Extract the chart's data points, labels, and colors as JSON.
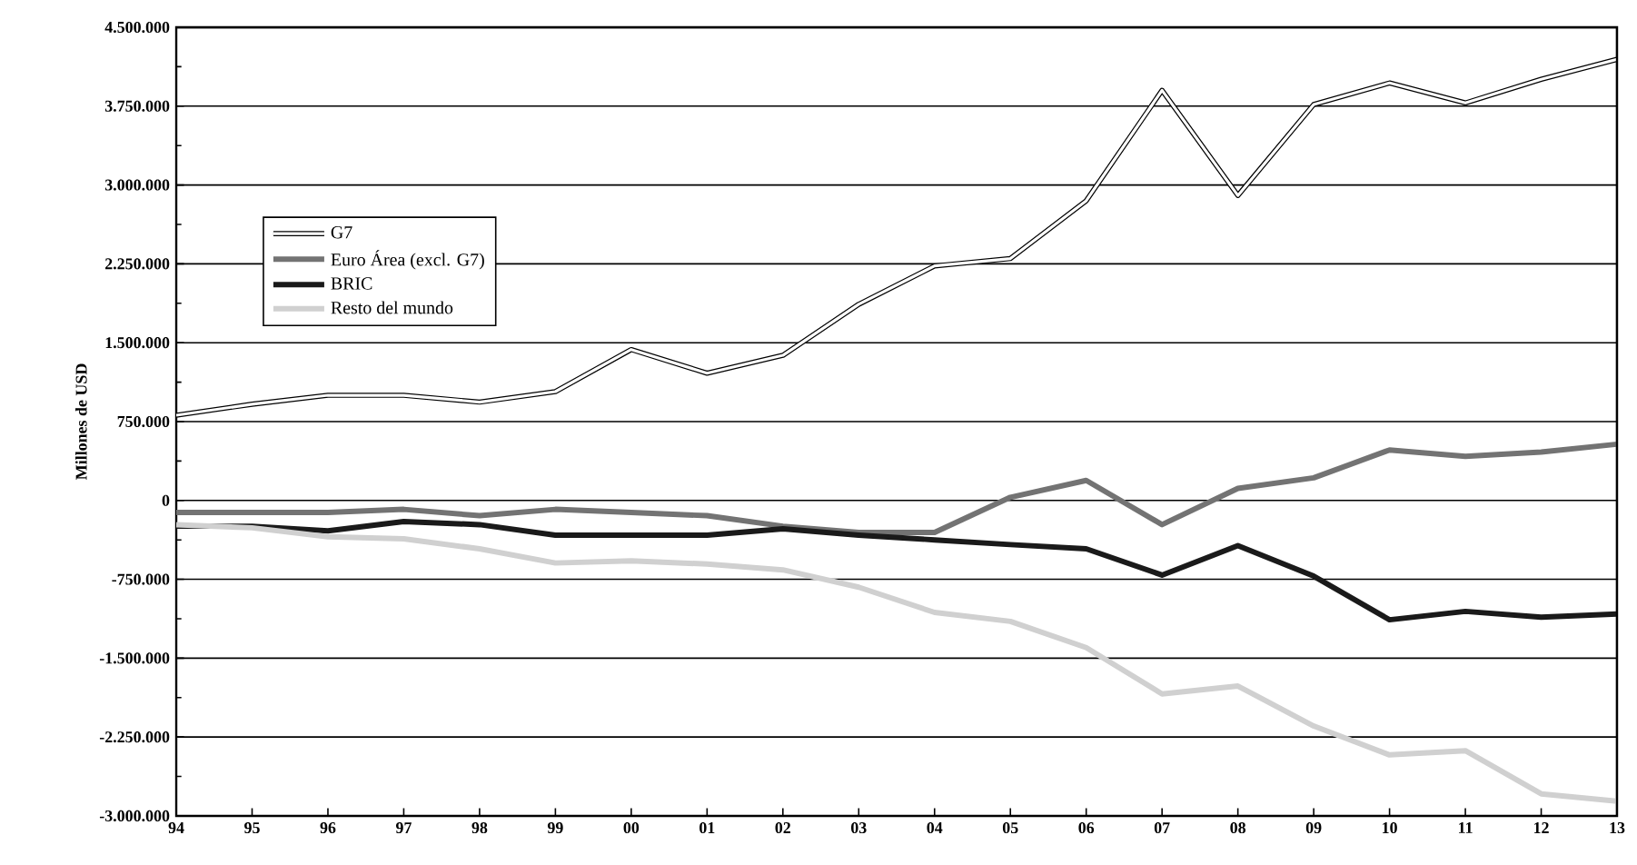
{
  "chart_data": {
    "type": "line",
    "ylabel": "Millones de USD",
    "categories": [
      "94",
      "95",
      "96",
      "97",
      "98",
      "99",
      "00",
      "01",
      "02",
      "03",
      "04",
      "05",
      "06",
      "07",
      "08",
      "09",
      "10",
      "11",
      "12",
      "13"
    ],
    "series": [
      {
        "name": "G7",
        "color": "#ffffff",
        "values": [
          810000,
          915000,
          1000000,
          1000000,
          935000,
          1035000,
          1435000,
          1210000,
          1380000,
          1865000,
          2230000,
          2300000,
          2850000,
          3900000,
          2900000,
          3765000,
          3970000,
          3780000,
          4005000,
          4195000
        ]
      },
      {
        "name": "Euro Área (excl. G7)",
        "color": "#737373",
        "values": [
          -115000,
          -115000,
          -115000,
          -85000,
          -145000,
          -85000,
          -115000,
          -145000,
          -245000,
          -305000,
          -305000,
          30000,
          190000,
          -230000,
          115000,
          215000,
          480000,
          420000,
          460000,
          535000
        ]
      },
      {
        "name": "BRIC",
        "color": "#1a1a1a",
        "values": [
          -245000,
          -245000,
          -290000,
          -200000,
          -230000,
          -330000,
          -330000,
          -330000,
          -270000,
          -330000,
          -375000,
          -420000,
          -460000,
          -710000,
          -430000,
          -720000,
          -1135000,
          -1055000,
          -1110000,
          -1080000
        ]
      },
      {
        "name": "Resto del mundo",
        "color": "#d0d0d0",
        "values": [
          -230000,
          -260000,
          -345000,
          -365000,
          -460000,
          -595000,
          -575000,
          -605000,
          -660000,
          -825000,
          -1065000,
          -1150000,
          -1400000,
          -1840000,
          -1765000,
          -2145000,
          -2420000,
          -2380000,
          -2790000,
          -2860000
        ]
      }
    ],
    "ylim": [
      -3000000,
      4500000
    ],
    "yticks": [
      {
        "value": -3000000,
        "label": "-3.000.000"
      },
      {
        "value": -2250000,
        "label": "-2.250.000"
      },
      {
        "value": -1500000,
        "label": "-1.500.000"
      },
      {
        "value": -750000,
        "label": "-750.000"
      },
      0,
      {
        "value": 750000,
        "label": "750.000"
      },
      {
        "value": 1500000,
        "label": "1.500.000"
      },
      {
        "value": 2250000,
        "label": "2.250.000"
      },
      {
        "value": 3000000,
        "label": "3.000.000"
      },
      {
        "value": 3750000,
        "label": "3.750.000"
      },
      {
        "value": 4500000,
        "label": "4.500.000"
      }
    ],
    "grid": "y",
    "legend": "top left",
    "marker": "none",
    "line_style": "solid"
  }
}
